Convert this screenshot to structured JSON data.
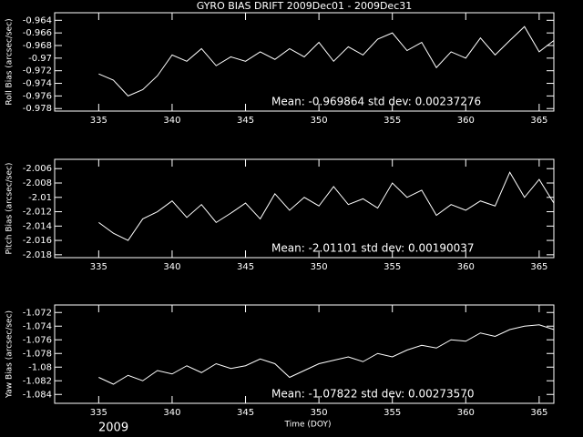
{
  "title": "GYRO BIAS DRIFT 2009Dec01 - 2009Dec31",
  "year": "2009",
  "chart_data": [
    {
      "type": "line",
      "ylabel": "Roll Bias (arcsec/sec)",
      "annotation": "Mean: -0.969864 std dev: 0.00237276",
      "x": [
        335,
        336,
        337,
        338,
        339,
        340,
        341,
        342,
        343,
        344,
        345,
        346,
        347,
        348,
        349,
        350,
        351,
        352,
        353,
        354,
        355,
        356,
        357,
        358,
        359,
        360,
        361,
        362,
        363,
        364,
        365,
        366
      ],
      "series": [
        {
          "color": "#ffffff",
          "values": [
            -0.9725,
            -0.9735,
            -0.976,
            -0.975,
            -0.9728,
            -0.9695,
            -0.9705,
            -0.9685,
            -0.9712,
            -0.9698,
            -0.9705,
            -0.969,
            -0.9702,
            -0.9685,
            -0.9698,
            -0.9675,
            -0.9705,
            -0.9682,
            -0.9695,
            -0.967,
            -0.966,
            -0.9688,
            -0.9675,
            -0.9715,
            -0.969,
            -0.97,
            -0.9668,
            -0.9695,
            -0.9672,
            -0.965,
            -0.969,
            -0.9672
          ]
        }
      ],
      "xlim": [
        332,
        366
      ],
      "xticks": [
        335,
        340,
        345,
        350,
        355,
        360,
        365
      ],
      "ylim": [
        -0.9784,
        -0.9628
      ],
      "yticks": [
        -0.964,
        -0.966,
        -0.968,
        -0.97,
        -0.972,
        -0.974,
        -0.976,
        -0.978
      ]
    },
    {
      "type": "line",
      "ylabel": "Pitch Bias (arcsec/sec)",
      "annotation": "Mean: -2.01101 std dev: 0.00190037",
      "x": [
        335,
        336,
        337,
        338,
        339,
        340,
        341,
        342,
        343,
        344,
        345,
        346,
        347,
        348,
        349,
        350,
        351,
        352,
        353,
        354,
        355,
        356,
        357,
        358,
        359,
        360,
        361,
        362,
        363,
        364,
        365,
        366
      ],
      "series": [
        {
          "color": "#ffffff",
          "values": [
            -2.0135,
            -2.015,
            -2.016,
            -2.013,
            -2.012,
            -2.0105,
            -2.0128,
            -2.011,
            -2.0135,
            -2.0122,
            -2.0108,
            -2.013,
            -2.0095,
            -2.0118,
            -2.01,
            -2.0112,
            -2.0085,
            -2.011,
            -2.0102,
            -2.0115,
            -2.008,
            -2.01,
            -2.009,
            -2.0125,
            -2.011,
            -2.0118,
            -2.0105,
            -2.0112,
            -2.0065,
            -2.01,
            -2.0075,
            -2.0108
          ]
        }
      ],
      "xlim": [
        332,
        366
      ],
      "xticks": [
        335,
        340,
        345,
        350,
        355,
        360,
        365
      ],
      "ylim": [
        -2.0184,
        -2.0047
      ],
      "yticks": [
        -2.006,
        -2.008,
        -2.01,
        -2.012,
        -2.014,
        -2.016,
        -2.018
      ]
    },
    {
      "type": "line",
      "ylabel": "Yaw Bias (arcsec/sec)",
      "xlabel": "Time (DOY)",
      "annotation": "Mean: -1.07822 std dev: 0.00273570",
      "x": [
        335,
        336,
        337,
        338,
        339,
        340,
        341,
        342,
        343,
        344,
        345,
        346,
        347,
        348,
        349,
        350,
        351,
        352,
        353,
        354,
        355,
        356,
        357,
        358,
        359,
        360,
        361,
        362,
        363,
        364,
        365,
        366
      ],
      "series": [
        {
          "color": "#ffffff",
          "values": [
            -1.0815,
            -1.0825,
            -1.0812,
            -1.082,
            -1.0805,
            -1.081,
            -1.0798,
            -1.0808,
            -1.0795,
            -1.0802,
            -1.0798,
            -1.0788,
            -1.0795,
            -1.0815,
            -1.0805,
            -1.0795,
            -1.079,
            -1.0785,
            -1.0792,
            -1.078,
            -1.0785,
            -1.0775,
            -1.0768,
            -1.0772,
            -1.076,
            -1.0762,
            -1.075,
            -1.0755,
            -1.0745,
            -1.074,
            -1.0738,
            -1.0745
          ]
        }
      ],
      "xlim": [
        332,
        366
      ],
      "xticks": [
        335,
        340,
        345,
        350,
        355,
        360,
        365
      ],
      "ylim": [
        -1.0853,
        -1.0709
      ],
      "yticks": [
        -1.072,
        -1.074,
        -1.076,
        -1.078,
        -1.08,
        -1.082,
        -1.084
      ]
    }
  ]
}
